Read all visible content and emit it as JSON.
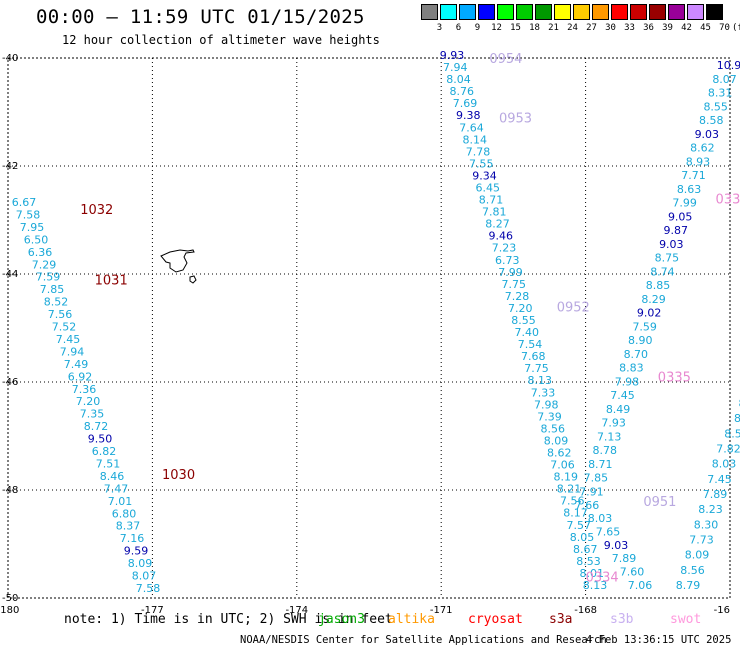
{
  "header": {
    "title": "00:00 – 11:59 UTC 01/15/2025",
    "subtitle": "12 hour collection of altimeter wave heights"
  },
  "legend": {
    "unit": "(ft)",
    "bins": [
      {
        "label": "3",
        "color": "#808080"
      },
      {
        "label": "6",
        "color": "#00ffff"
      },
      {
        "label": "9",
        "color": "#00aaff"
      },
      {
        "label": "12",
        "color": "#0000ff"
      },
      {
        "label": "15",
        "color": "#00ff00"
      },
      {
        "label": "18",
        "color": "#00cc00"
      },
      {
        "label": "21",
        "color": "#009900"
      },
      {
        "label": "24",
        "color": "#ffff00"
      },
      {
        "label": "27",
        "color": "#ffcc00"
      },
      {
        "label": "30",
        "color": "#ff9900"
      },
      {
        "label": "33",
        "color": "#ff0000"
      },
      {
        "label": "36",
        "color": "#cc0000"
      },
      {
        "label": "39",
        "color": "#990000"
      },
      {
        "label": "42",
        "color": "#990099"
      },
      {
        "label": "45",
        "color": "#cc88ff"
      },
      {
        "label": "70",
        "color": "#000000"
      }
    ]
  },
  "axes": {
    "lon_labels": [
      "-180",
      "-177",
      "-174",
      "-171",
      "-168",
      "-16"
    ],
    "lat_labels": [
      "-40",
      "-42",
      "-44",
      "-46",
      "-48",
      "-50"
    ]
  },
  "map_data": {
    "colors": {
      "light": "#1aa8d8",
      "dark": "#0000aa",
      "s3a": "#8b0000",
      "jason": "#b8a8e0",
      "swot": "#e888d0"
    },
    "passes": [
      {
        "x0": 24,
        "y0": 202,
        "dx": 124,
        "dy": 386,
        "values": [
          [
            "6.67",
            "light"
          ],
          [
            "7.58",
            "light"
          ],
          [
            "7.95",
            "light"
          ],
          [
            "6.50",
            "light"
          ],
          [
            "6.36",
            "light"
          ],
          [
            "7.29",
            "light"
          ],
          [
            "7.59",
            "light"
          ],
          [
            "7.85",
            "light"
          ],
          [
            "8.52",
            "light"
          ],
          [
            "7.56",
            "light"
          ],
          [
            "7.52",
            "light"
          ],
          [
            "7.45",
            "light"
          ],
          [
            "7.94",
            "light"
          ],
          [
            "7.49",
            "light"
          ],
          [
            "6.92",
            "light"
          ],
          [
            "7.36",
            "light"
          ],
          [
            "7.20",
            "light"
          ],
          [
            "7.35",
            "light"
          ],
          [
            "8.72",
            "light"
          ],
          [
            "9.50",
            "dark"
          ],
          [
            "6.82",
            "light"
          ],
          [
            "7.51",
            "light"
          ],
          [
            "8.46",
            "light"
          ],
          [
            "7.47",
            "light"
          ],
          [
            "7.01",
            "light"
          ],
          [
            "6.80",
            "light"
          ],
          [
            "8.37",
            "light"
          ],
          [
            "7.16",
            "light"
          ],
          [
            "9.59",
            "dark"
          ],
          [
            "8.09",
            "light"
          ],
          [
            "8.07",
            "light"
          ],
          [
            "7.58",
            "light"
          ]
        ]
      },
      {
        "x0": 452,
        "y0": 55,
        "dx": 143,
        "dy": 530,
        "values": [
          [
            "9.93",
            "dark"
          ],
          [
            "7.94",
            "light"
          ],
          [
            "8.04",
            "light"
          ],
          [
            "8.76",
            "light"
          ],
          [
            "7.69",
            "light"
          ],
          [
            "9.38",
            "dark"
          ],
          [
            "7.64",
            "light"
          ],
          [
            "8.14",
            "light"
          ],
          [
            "7.78",
            "light"
          ],
          [
            "7.55",
            "light"
          ],
          [
            "9.34",
            "dark"
          ],
          [
            "6.45",
            "light"
          ],
          [
            "8.71",
            "light"
          ],
          [
            "7.81",
            "light"
          ],
          [
            "8.27",
            "light"
          ],
          [
            "9.46",
            "dark"
          ],
          [
            "7.23",
            "light"
          ],
          [
            "6.73",
            "light"
          ],
          [
            "7.99",
            "light"
          ],
          [
            "7.75",
            "light"
          ],
          [
            "7.28",
            "light"
          ],
          [
            "7.20",
            "light"
          ],
          [
            "8.55",
            "light"
          ],
          [
            "7.40",
            "light"
          ],
          [
            "7.54",
            "light"
          ],
          [
            "7.68",
            "light"
          ],
          [
            "7.75",
            "light"
          ],
          [
            "8.13",
            "light"
          ],
          [
            "7.33",
            "light"
          ],
          [
            "7.98",
            "light"
          ],
          [
            "7.39",
            "light"
          ],
          [
            "8.56",
            "light"
          ],
          [
            "8.09",
            "light"
          ],
          [
            "8.62",
            "light"
          ],
          [
            "7.06",
            "light"
          ],
          [
            "8.19",
            "light"
          ],
          [
            "8.21",
            "light"
          ],
          [
            "7.56",
            "light"
          ],
          [
            "8.17",
            "light"
          ],
          [
            "7.57",
            "light"
          ],
          [
            "8.05",
            "light"
          ],
          [
            "8.67",
            "light"
          ],
          [
            "8.53",
            "light"
          ],
          [
            "8.01",
            "light"
          ],
          [
            "8.13",
            "light"
          ]
        ]
      },
      {
        "x0": 729,
        "y0": 65,
        "dx": -142,
        "dy": 440,
        "values": [
          [
            "10.9",
            "dark"
          ],
          [
            "8.07",
            "light"
          ],
          [
            "8.31",
            "light"
          ],
          [
            "8.55",
            "light"
          ],
          [
            "8.58",
            "light"
          ],
          [
            "9.03",
            "dark"
          ],
          [
            "8.62",
            "light"
          ],
          [
            "8.93",
            "light"
          ],
          [
            "7.71",
            "light"
          ],
          [
            "8.63",
            "light"
          ],
          [
            "7.99",
            "light"
          ],
          [
            "9.05",
            "dark"
          ],
          [
            "9.87",
            "dark"
          ],
          [
            "9.03",
            "dark"
          ],
          [
            "8.75",
            "light"
          ],
          [
            "8.74",
            "light"
          ],
          [
            "8.85",
            "light"
          ],
          [
            "8.29",
            "light"
          ],
          [
            "9.02",
            "dark"
          ],
          [
            "7.59",
            "light"
          ],
          [
            "8.90",
            "light"
          ],
          [
            "8.70",
            "light"
          ],
          [
            "8.83",
            "light"
          ],
          [
            "7.98",
            "light"
          ],
          [
            "7.45",
            "light"
          ],
          [
            "8.49",
            "light"
          ],
          [
            "7.93",
            "light"
          ],
          [
            "7.13",
            "light"
          ],
          [
            "8.78",
            "light"
          ],
          [
            "8.71",
            "light"
          ],
          [
            "7.85",
            "light"
          ],
          [
            "7.91",
            "light"
          ],
          [
            "7.66",
            "light"
          ]
        ]
      },
      {
        "x0": 600,
        "y0": 518,
        "dx": 40,
        "dy": 67,
        "values": [
          [
            "8.03",
            "light"
          ],
          [
            "7.65",
            "light"
          ],
          [
            "9.03",
            "dark"
          ],
          [
            "7.89",
            "light"
          ],
          [
            "7.60",
            "light"
          ],
          [
            "7.06",
            "light"
          ]
        ]
      },
      {
        "x0": 742,
        "y0": 403,
        "dx": -54,
        "dy": 182,
        "values": [
          [
            "8",
            "light"
          ],
          [
            "8",
            "light"
          ],
          [
            "8.5",
            "light"
          ],
          [
            "7.82",
            "light"
          ],
          [
            "8.03",
            "light"
          ],
          [
            "7.45",
            "light"
          ],
          [
            "7.89",
            "light"
          ],
          [
            "8.23",
            "light"
          ],
          [
            "8.30",
            "light"
          ],
          [
            "7.73",
            "light"
          ],
          [
            "8.09",
            "light"
          ],
          [
            "8.56",
            "light"
          ],
          [
            "8.79",
            "light"
          ]
        ]
      }
    ],
    "pass_ids": [
      {
        "text": "1032",
        "lon": -178.5,
        "lat": -42.8,
        "color": "s3a"
      },
      {
        "text": "1031",
        "lon": -178.2,
        "lat": -44.1,
        "color": "s3a"
      },
      {
        "text": "1030",
        "lon": -176.8,
        "lat": -47.7,
        "color": "s3a"
      },
      {
        "text": "0954",
        "lon": -170.0,
        "lat": -40.0,
        "color": "jason"
      },
      {
        "text": "0953",
        "lon": -169.8,
        "lat": -41.1,
        "color": "jason"
      },
      {
        "text": "0952",
        "lon": -168.6,
        "lat": -44.6,
        "color": "jason"
      },
      {
        "text": "0951",
        "lon": -166.8,
        "lat": -48.2,
        "color": "jason"
      },
      {
        "text": "0335",
        "lon": -166.5,
        "lat": -45.9,
        "color": "swot"
      },
      {
        "text": "0334",
        "lon": -168.0,
        "lat": -49.6,
        "color": "swot"
      },
      {
        "text": "033",
        "lon": -165.3,
        "lat": -42.6,
        "color": "swot"
      }
    ]
  },
  "note": "note: 1) Time is in UTC; 2) SWH is in feet",
  "satellites": [
    {
      "label": "jason3",
      "color": "#00aa00"
    },
    {
      "label": "altika",
      "color": "#ff9900"
    },
    {
      "label": "cryosat",
      "color": "#ff0000"
    },
    {
      "label": "s3a",
      "color": "#8b0000"
    },
    {
      "label": "s3b",
      "color": "#c8b0f0"
    },
    {
      "label": "swot",
      "color": "#ff99dd"
    }
  ],
  "footer": {
    "credit": "NOAA/NESDIS Center for Satellite Applications and Research",
    "timestamp": "4 Feb 13:36:15 UTC 2025"
  }
}
